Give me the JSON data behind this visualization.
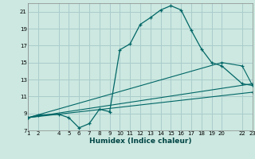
{
  "xlabel": "Humidex (Indice chaleur)",
  "bg_color": "#cce8e0",
  "grid_color": "#aacccc",
  "line_color": "#006666",
  "xlim": [
    1,
    23
  ],
  "ylim": [
    7,
    22
  ],
  "xticks": [
    1,
    2,
    4,
    5,
    6,
    7,
    8,
    9,
    10,
    11,
    12,
    13,
    14,
    15,
    16,
    17,
    18,
    19,
    20,
    22,
    23
  ],
  "yticks": [
    7,
    9,
    11,
    13,
    15,
    17,
    19,
    21
  ],
  "series_main": {
    "x": [
      1,
      2,
      4,
      5,
      6,
      7,
      8,
      9,
      10,
      11,
      12,
      13,
      14,
      15,
      16,
      17,
      18,
      19,
      20,
      22,
      23
    ],
    "y": [
      8.5,
      8.8,
      8.9,
      8.5,
      7.3,
      7.8,
      9.5,
      9.2,
      16.5,
      17.2,
      19.5,
      20.3,
      21.2,
      21.7,
      21.2,
      18.8,
      16.6,
      15.0,
      14.6,
      12.5,
      12.3
    ]
  },
  "series_lines": [
    {
      "x": [
        1,
        20,
        22,
        23
      ],
      "y": [
        8.5,
        15.0,
        14.6,
        12.3
      ]
    },
    {
      "x": [
        1,
        23
      ],
      "y": [
        8.5,
        12.5
      ]
    },
    {
      "x": [
        1,
        23
      ],
      "y": [
        8.5,
        11.5
      ]
    }
  ]
}
